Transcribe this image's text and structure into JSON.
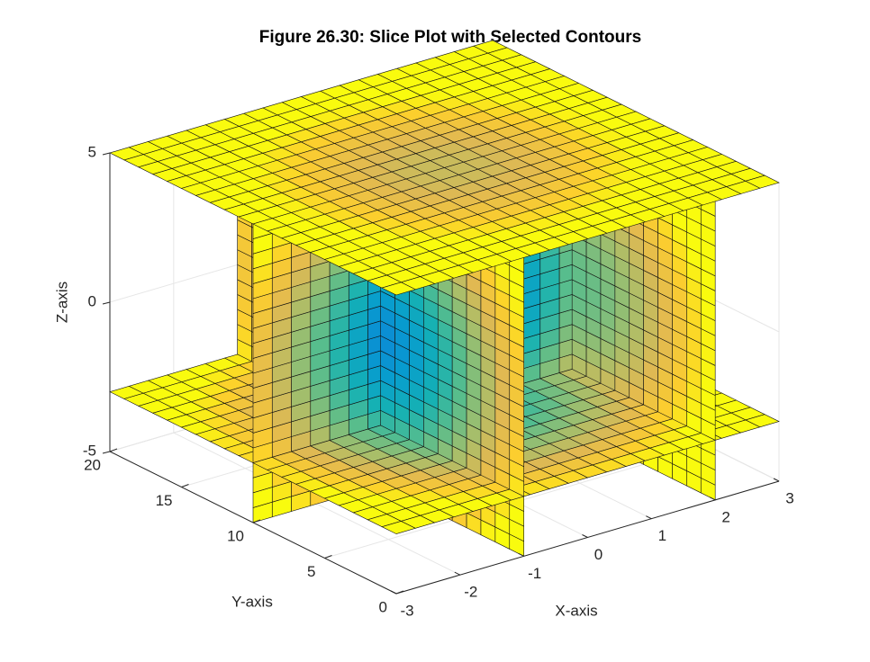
{
  "chart_data": {
    "type": "slice",
    "title": "Figure 26.30: Slice Plot with Selected Contours",
    "x_label": "X-axis",
    "y_label": "Y-axis",
    "z_label": "Z-axis",
    "xlim": [
      -3,
      3
    ],
    "ylim": [
      0,
      20
    ],
    "zlim": [
      -5,
      5
    ],
    "xticks": [
      -3,
      -2,
      -1,
      0,
      1,
      2,
      3
    ],
    "yticks": [
      0,
      5,
      10,
      15,
      20
    ],
    "zticks": [
      -5,
      0,
      5
    ],
    "grid": true
  }
}
